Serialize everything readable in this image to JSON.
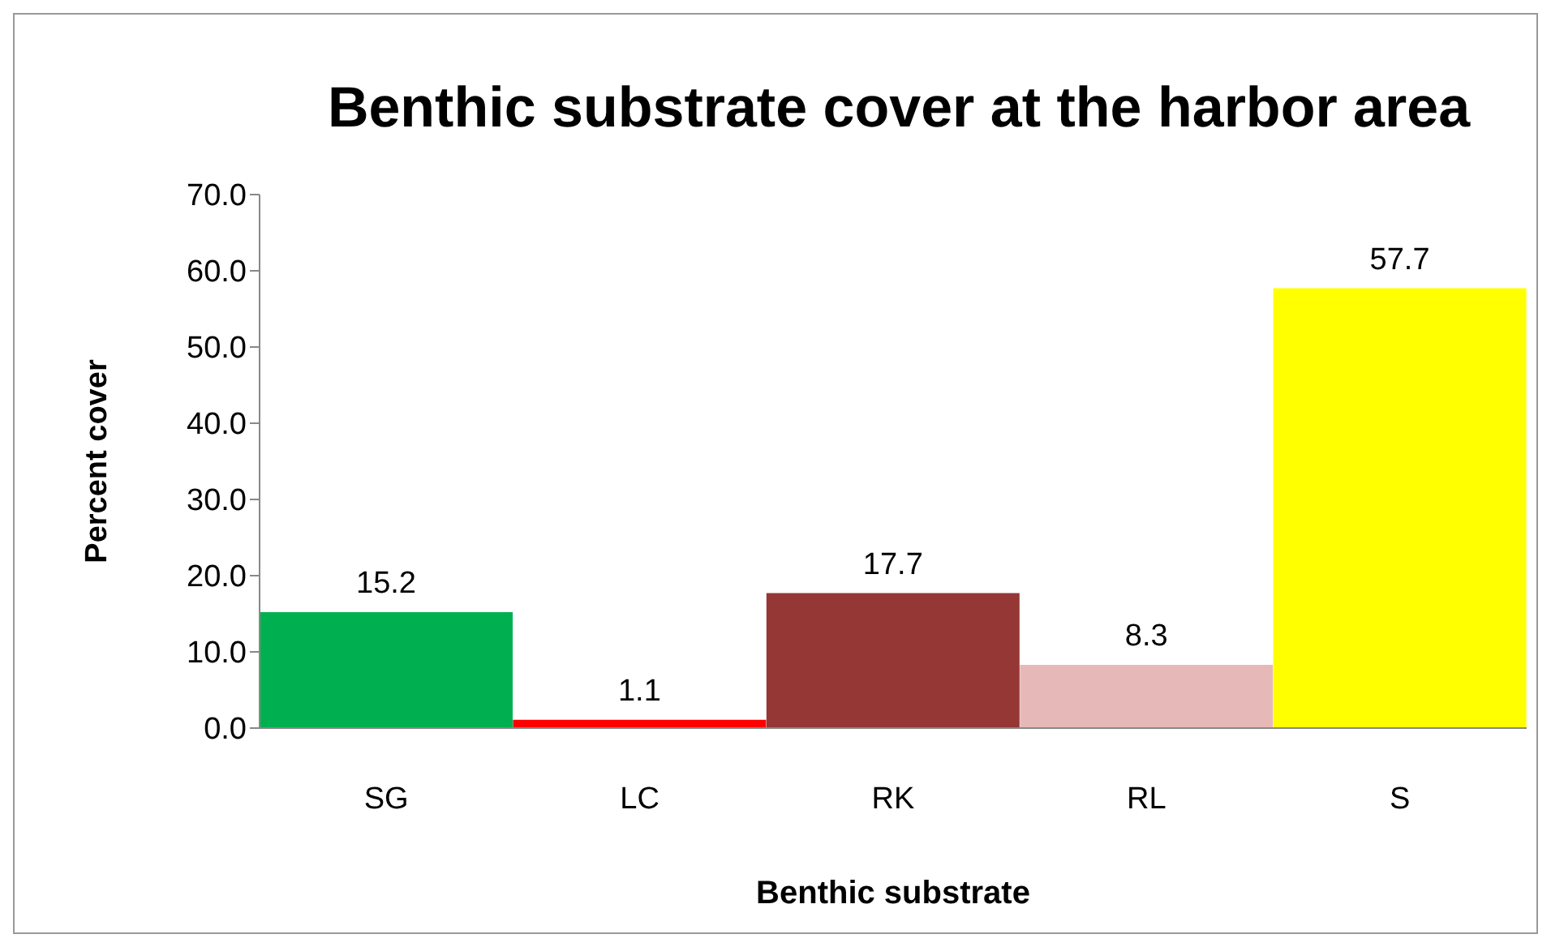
{
  "chart_data": {
    "type": "bar",
    "title": "Benthic substrate cover at the harbor area",
    "xlabel": "Benthic substrate",
    "ylabel": "Percent cover",
    "categories": [
      "SG",
      "LC",
      "RK",
      "RL",
      "S"
    ],
    "values": [
      15.2,
      1.1,
      17.7,
      8.3,
      57.7
    ],
    "colors": [
      "#00b050",
      "#ff0000",
      "#953735",
      "#e6b9b8",
      "#ffff00"
    ],
    "ylim": [
      0,
      70
    ],
    "yticks": [
      {
        "value": 0,
        "label": "0.0"
      },
      {
        "value": 10,
        "label": "10.0"
      },
      {
        "value": 20,
        "label": "20.0"
      },
      {
        "value": 30,
        "label": "30.0"
      },
      {
        "value": 40,
        "label": "40.0"
      },
      {
        "value": 50,
        "label": "50.0"
      },
      {
        "value": 60,
        "label": "60.0"
      },
      {
        "value": 70,
        "label": "70.0"
      }
    ],
    "grid": false,
    "legend": false,
    "data_labels": true
  }
}
